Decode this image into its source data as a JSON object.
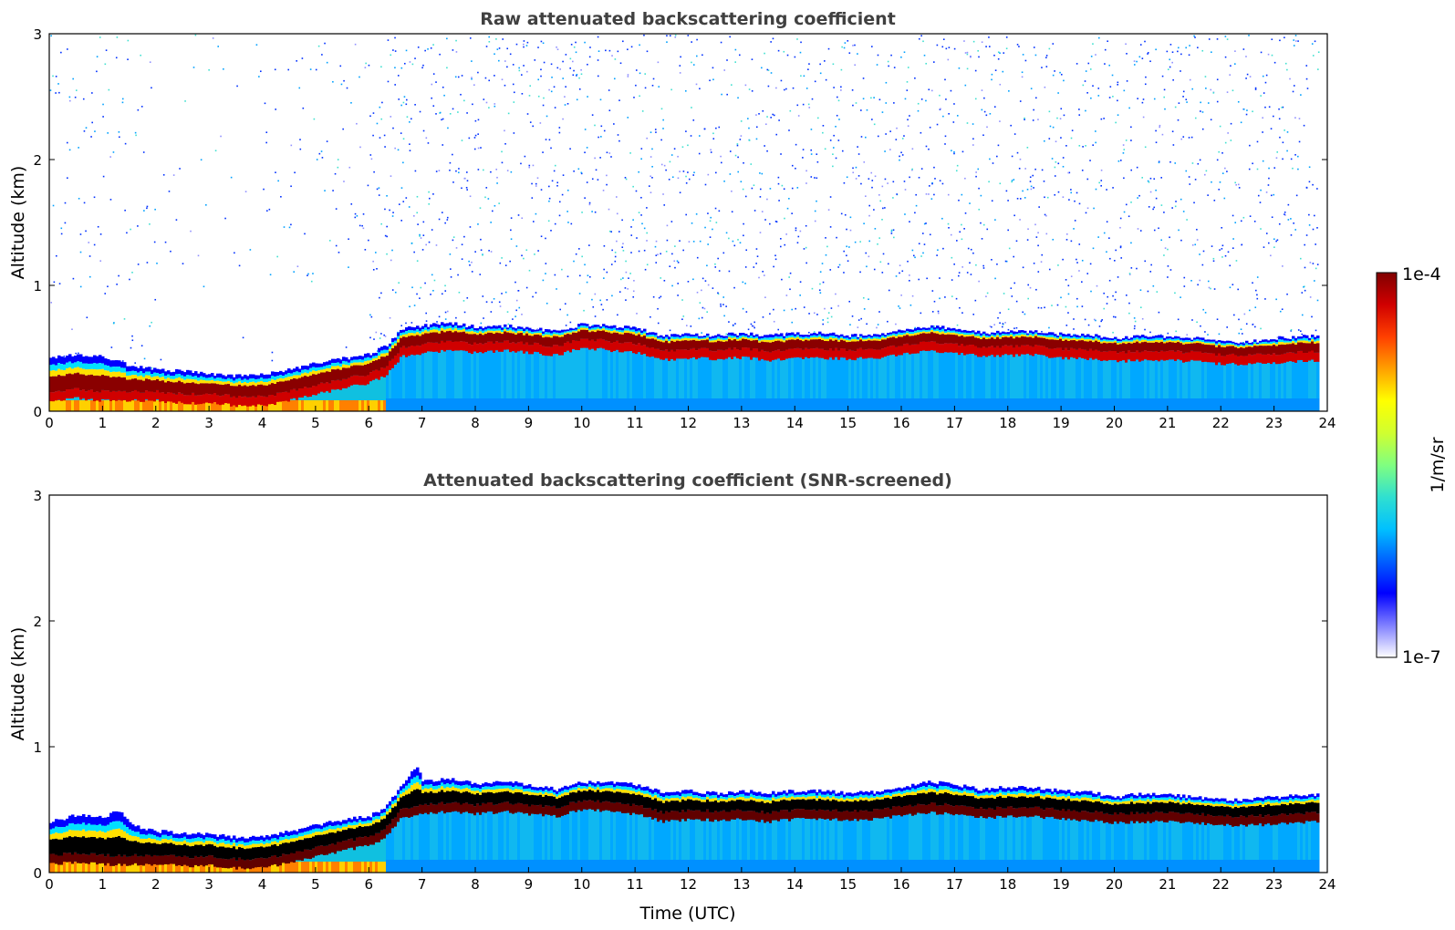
{
  "chart_data": [
    {
      "type": "heatmap",
      "title": "Raw attenuated backscattering coefficient",
      "xlabel": "",
      "ylabel": "Altitude (km)",
      "xlim": [
        0,
        24
      ],
      "ylim": [
        0,
        3
      ],
      "x_ticks": [
        "0",
        "1",
        "2",
        "3",
        "4",
        "5",
        "6",
        "7",
        "8",
        "9",
        "10",
        "11",
        "12",
        "13",
        "14",
        "15",
        "16",
        "17",
        "18",
        "19",
        "20",
        "21",
        "22",
        "23",
        "24"
      ],
      "y_ticks": [
        "0",
        "1",
        "2",
        "3"
      ],
      "data_end_time": 23.8,
      "screening": "none",
      "layer_top_km": [
        [
          0,
          0.42
        ],
        [
          0.5,
          0.45
        ],
        [
          1,
          0.43
        ],
        [
          1.5,
          0.36
        ],
        [
          2,
          0.33
        ],
        [
          2.5,
          0.32
        ],
        [
          3,
          0.3
        ],
        [
          3.5,
          0.28
        ],
        [
          4,
          0.29
        ],
        [
          4.5,
          0.33
        ],
        [
          5,
          0.38
        ],
        [
          5.5,
          0.42
        ],
        [
          6,
          0.45
        ],
        [
          6.3,
          0.52
        ],
        [
          6.6,
          0.65
        ],
        [
          7,
          0.68
        ],
        [
          7.5,
          0.7
        ],
        [
          8,
          0.67
        ],
        [
          8.5,
          0.68
        ],
        [
          9,
          0.66
        ],
        [
          9.5,
          0.63
        ],
        [
          10,
          0.69
        ],
        [
          10.5,
          0.68
        ],
        [
          11,
          0.66
        ],
        [
          11.5,
          0.6
        ],
        [
          12,
          0.61
        ],
        [
          12.5,
          0.6
        ],
        [
          13,
          0.62
        ],
        [
          13.5,
          0.6
        ],
        [
          14,
          0.62
        ],
        [
          14.5,
          0.62
        ],
        [
          15,
          0.6
        ],
        [
          15.5,
          0.61
        ],
        [
          16,
          0.64
        ],
        [
          16.5,
          0.67
        ],
        [
          17,
          0.66
        ],
        [
          17.5,
          0.62
        ],
        [
          18,
          0.64
        ],
        [
          18.5,
          0.63
        ],
        [
          19,
          0.61
        ],
        [
          19.5,
          0.61
        ],
        [
          20,
          0.58
        ],
        [
          20.5,
          0.6
        ],
        [
          21,
          0.59
        ],
        [
          21.5,
          0.58
        ],
        [
          22,
          0.55
        ],
        [
          22.5,
          0.55
        ],
        [
          23,
          0.58
        ],
        [
          23.8,
          0.6
        ]
      ],
      "layer_core_km": [
        [
          0,
          0.2
        ],
        [
          0.5,
          0.22
        ],
        [
          1,
          0.2
        ],
        [
          1.5,
          0.2
        ],
        [
          2,
          0.2
        ],
        [
          2.5,
          0.18
        ],
        [
          3,
          0.18
        ],
        [
          3.5,
          0.16
        ],
        [
          4,
          0.16
        ],
        [
          4.5,
          0.2
        ],
        [
          5,
          0.25
        ],
        [
          5.5,
          0.3
        ],
        [
          6,
          0.34
        ],
        [
          6.3,
          0.4
        ],
        [
          6.6,
          0.55
        ],
        [
          7,
          0.58
        ],
        [
          7.5,
          0.6
        ],
        [
          8,
          0.58
        ],
        [
          8.5,
          0.6
        ],
        [
          9,
          0.58
        ],
        [
          9.5,
          0.56
        ],
        [
          10,
          0.62
        ],
        [
          10.5,
          0.6
        ],
        [
          11,
          0.58
        ],
        [
          11.5,
          0.52
        ],
        [
          12,
          0.54
        ],
        [
          12.5,
          0.53
        ],
        [
          13,
          0.54
        ],
        [
          13.5,
          0.52
        ],
        [
          14,
          0.54
        ],
        [
          14.5,
          0.54
        ],
        [
          15,
          0.53
        ],
        [
          15.5,
          0.54
        ],
        [
          16,
          0.57
        ],
        [
          16.5,
          0.59
        ],
        [
          17,
          0.58
        ],
        [
          17.5,
          0.55
        ],
        [
          18,
          0.56
        ],
        [
          18.5,
          0.56
        ],
        [
          19,
          0.54
        ],
        [
          19.5,
          0.53
        ],
        [
          20,
          0.51
        ],
        [
          20.5,
          0.52
        ],
        [
          21,
          0.52
        ],
        [
          21.5,
          0.51
        ],
        [
          22,
          0.49
        ],
        [
          22.5,
          0.49
        ],
        [
          23,
          0.5
        ],
        [
          23.8,
          0.52
        ]
      ]
    },
    {
      "type": "heatmap",
      "title": "Attenuated backscattering coefficient (SNR-screened)",
      "xlabel": "Time (UTC)",
      "ylabel": "Altitude (km)",
      "xlim": [
        0,
        24
      ],
      "ylim": [
        0,
        3
      ],
      "x_ticks": [
        "0",
        "1",
        "2",
        "3",
        "4",
        "5",
        "6",
        "7",
        "8",
        "9",
        "10",
        "11",
        "12",
        "13",
        "14",
        "15",
        "16",
        "17",
        "18",
        "19",
        "20",
        "21",
        "22",
        "23",
        "24"
      ],
      "y_ticks": [
        "0",
        "1",
        "2",
        "3"
      ],
      "data_end_time": 23.8,
      "screening": "SNR",
      "layer_top_km": [
        [
          0,
          0.4
        ],
        [
          0.5,
          0.46
        ],
        [
          1,
          0.44
        ],
        [
          1.3,
          0.5
        ],
        [
          1.5,
          0.38
        ],
        [
          2,
          0.33
        ],
        [
          2.5,
          0.31
        ],
        [
          3,
          0.3
        ],
        [
          3.5,
          0.28
        ],
        [
          4,
          0.28
        ],
        [
          4.5,
          0.33
        ],
        [
          5,
          0.38
        ],
        [
          5.5,
          0.42
        ],
        [
          6,
          0.45
        ],
        [
          6.3,
          0.52
        ],
        [
          6.6,
          0.7
        ],
        [
          6.9,
          0.85
        ],
        [
          7,
          0.72
        ],
        [
          7.5,
          0.75
        ],
        [
          8,
          0.7
        ],
        [
          8.5,
          0.72
        ],
        [
          9,
          0.7
        ],
        [
          9.5,
          0.66
        ],
        [
          10,
          0.72
        ],
        [
          10.5,
          0.72
        ],
        [
          11,
          0.7
        ],
        [
          11.5,
          0.64
        ],
        [
          12,
          0.65
        ],
        [
          12.5,
          0.63
        ],
        [
          13,
          0.65
        ],
        [
          13.5,
          0.63
        ],
        [
          14,
          0.65
        ],
        [
          14.5,
          0.65
        ],
        [
          15,
          0.63
        ],
        [
          15.5,
          0.64
        ],
        [
          16,
          0.68
        ],
        [
          16.5,
          0.72
        ],
        [
          17,
          0.7
        ],
        [
          17.5,
          0.66
        ],
        [
          18,
          0.68
        ],
        [
          18.5,
          0.67
        ],
        [
          19,
          0.65
        ],
        [
          19.5,
          0.64
        ],
        [
          20,
          0.6
        ],
        [
          20.5,
          0.63
        ],
        [
          21,
          0.62
        ],
        [
          21.5,
          0.6
        ],
        [
          22,
          0.58
        ],
        [
          22.5,
          0.58
        ],
        [
          23,
          0.6
        ],
        [
          23.8,
          0.62
        ]
      ],
      "layer_core_km": [
        [
          0,
          0.18
        ],
        [
          0.5,
          0.2
        ],
        [
          1,
          0.18
        ],
        [
          1.5,
          0.18
        ],
        [
          2,
          0.18
        ],
        [
          2.5,
          0.17
        ],
        [
          3,
          0.17
        ],
        [
          3.5,
          0.15
        ],
        [
          4,
          0.15
        ],
        [
          4.5,
          0.2
        ],
        [
          5,
          0.24
        ],
        [
          5.5,
          0.29
        ],
        [
          6,
          0.33
        ],
        [
          6.3,
          0.4
        ],
        [
          6.6,
          0.55
        ],
        [
          7,
          0.58
        ],
        [
          7.5,
          0.6
        ],
        [
          8,
          0.58
        ],
        [
          8.5,
          0.6
        ],
        [
          9,
          0.58
        ],
        [
          9.5,
          0.56
        ],
        [
          10,
          0.62
        ],
        [
          10.5,
          0.6
        ],
        [
          11,
          0.58
        ],
        [
          11.5,
          0.52
        ],
        [
          12,
          0.54
        ],
        [
          12.5,
          0.53
        ],
        [
          13,
          0.54
        ],
        [
          13.5,
          0.52
        ],
        [
          14,
          0.54
        ],
        [
          14.5,
          0.54
        ],
        [
          15,
          0.53
        ],
        [
          15.5,
          0.54
        ],
        [
          16,
          0.57
        ],
        [
          16.5,
          0.59
        ],
        [
          17,
          0.58
        ],
        [
          17.5,
          0.55
        ],
        [
          18,
          0.56
        ],
        [
          18.5,
          0.56
        ],
        [
          19,
          0.54
        ],
        [
          19.5,
          0.53
        ],
        [
          20,
          0.51
        ],
        [
          20.5,
          0.52
        ],
        [
          21,
          0.52
        ],
        [
          21.5,
          0.51
        ],
        [
          22,
          0.49
        ],
        [
          22.5,
          0.49
        ],
        [
          23,
          0.5
        ],
        [
          23.8,
          0.52
        ]
      ]
    }
  ],
  "colorbar": {
    "label": "1/m/sr",
    "max_label": "1e-4",
    "min_label": "1e-7",
    "scale": "log",
    "colormap": "jet",
    "colors": [
      "#ffffff",
      "#8080ff",
      "#0000ff",
      "#0060ff",
      "#00c0ff",
      "#30e0d0",
      "#80ff80",
      "#d0ff30",
      "#ffff00",
      "#ffa000",
      "#ff4000",
      "#d00000",
      "#800000"
    ]
  }
}
